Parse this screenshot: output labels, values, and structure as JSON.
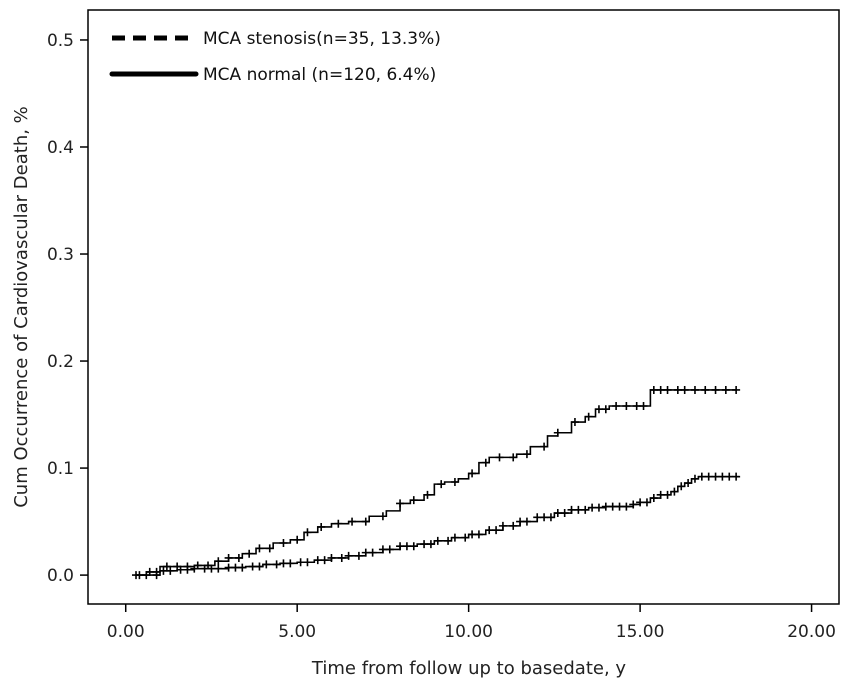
{
  "chart_data": {
    "type": "line",
    "xlabel": "Time from follow up  to basedate, y",
    "ylabel": "Cum Occurrence of Cardiovascular Death, %",
    "xlim": [
      -1.1,
      20.8
    ],
    "ylim": [
      -0.027,
      0.528
    ],
    "x_ticks": [
      0,
      5,
      10,
      15,
      20
    ],
    "x_tick_labels": [
      "0.00",
      "5.00",
      "10.00",
      "15.00",
      "20.00"
    ],
    "y_ticks": [
      0,
      0.1,
      0.2,
      0.3,
      0.4,
      0.5
    ],
    "y_tick_labels": [
      "0.0",
      "0.1",
      "0.2",
      "0.3",
      "0.4",
      "0.5"
    ],
    "grid": false,
    "legend_position": "top-left",
    "series": [
      {
        "name": "MCA stenosis(n=35, 13.3%)",
        "style": "dashed",
        "x": [
          0.3,
          1.0,
          1.5,
          2.0,
          2.6,
          3.0,
          3.4,
          3.8,
          4.3,
          4.8,
          5.2,
          5.6,
          6.0,
          6.5,
          7.1,
          7.6,
          8.0,
          8.3,
          8.7,
          9.0,
          9.3,
          9.7,
          10.0,
          10.3,
          10.6,
          11.0,
          11.4,
          11.8,
          12.3,
          12.6,
          13.0,
          13.4,
          13.7,
          14.1,
          14.5,
          15.2,
          15.3,
          16.0,
          17.5,
          17.8
        ],
        "y": [
          0.0,
          0.008,
          0.008,
          0.009,
          0.013,
          0.016,
          0.02,
          0.025,
          0.03,
          0.033,
          0.04,
          0.045,
          0.048,
          0.05,
          0.055,
          0.06,
          0.067,
          0.07,
          0.075,
          0.085,
          0.087,
          0.09,
          0.095,
          0.105,
          0.11,
          0.11,
          0.113,
          0.12,
          0.13,
          0.133,
          0.143,
          0.148,
          0.155,
          0.158,
          0.158,
          0.158,
          0.173,
          0.173,
          0.173,
          0.173
        ],
        "censor_x": [
          0.3,
          0.6,
          0.9,
          1.2,
          1.5,
          1.8,
          2.1,
          2.4,
          2.7,
          3.0,
          3.3,
          3.6,
          3.9,
          4.2,
          4.6,
          5.0,
          5.3,
          5.7,
          6.2,
          6.6,
          7.0,
          7.5,
          8.0,
          8.4,
          8.8,
          9.2,
          9.6,
          10.1,
          10.5,
          10.9,
          11.3,
          11.7,
          12.2,
          12.6,
          13.1,
          13.5,
          13.8,
          14.0,
          14.3,
          14.6,
          14.9,
          15.1,
          15.4,
          15.6,
          15.8,
          16.1,
          16.3,
          16.6,
          16.9,
          17.2,
          17.5,
          17.8
        ]
      },
      {
        "name": "MCA normal (n=120, 6.4%)",
        "style": "solid",
        "x": [
          0.3,
          0.6,
          1.0,
          1.5,
          2.0,
          2.5,
          3.0,
          3.5,
          4.0,
          4.5,
          5.0,
          5.5,
          6.0,
          6.5,
          7.0,
          7.5,
          8.0,
          8.5,
          9.0,
          9.5,
          10.0,
          10.5,
          11.0,
          11.5,
          12.0,
          12.5,
          13.0,
          13.5,
          14.0,
          14.5,
          14.8,
          15.0,
          15.3,
          15.6,
          15.9,
          16.1,
          16.3,
          16.5,
          16.7,
          17.0,
          17.9
        ],
        "y": [
          0.0,
          0.003,
          0.004,
          0.005,
          0.006,
          0.006,
          0.007,
          0.008,
          0.01,
          0.011,
          0.012,
          0.014,
          0.016,
          0.018,
          0.021,
          0.024,
          0.027,
          0.029,
          0.032,
          0.035,
          0.038,
          0.042,
          0.046,
          0.05,
          0.054,
          0.058,
          0.061,
          0.063,
          0.064,
          0.064,
          0.066,
          0.068,
          0.072,
          0.075,
          0.078,
          0.083,
          0.086,
          0.09,
          0.092,
          0.092,
          0.092
        ],
        "censor_x": [
          0.4,
          0.7,
          0.9,
          1.1,
          1.3,
          1.6,
          1.8,
          2.0,
          2.3,
          2.5,
          2.7,
          3.0,
          3.2,
          3.4,
          3.7,
          3.9,
          4.1,
          4.4,
          4.6,
          4.8,
          5.1,
          5.3,
          5.6,
          5.8,
          6.0,
          6.3,
          6.5,
          6.8,
          7.0,
          7.2,
          7.5,
          7.7,
          8.0,
          8.2,
          8.4,
          8.7,
          8.9,
          9.1,
          9.4,
          9.6,
          9.9,
          10.1,
          10.3,
          10.6,
          10.8,
          11.0,
          11.3,
          11.5,
          11.7,
          12.0,
          12.2,
          12.4,
          12.6,
          12.8,
          13.0,
          13.2,
          13.4,
          13.6,
          13.8,
          14.0,
          14.2,
          14.4,
          14.6,
          14.8,
          15.0,
          15.2,
          15.4,
          15.6,
          15.8,
          16.0,
          16.2,
          16.4,
          16.6,
          16.8,
          17.0,
          17.2,
          17.4,
          17.6,
          17.8
        ]
      }
    ]
  }
}
